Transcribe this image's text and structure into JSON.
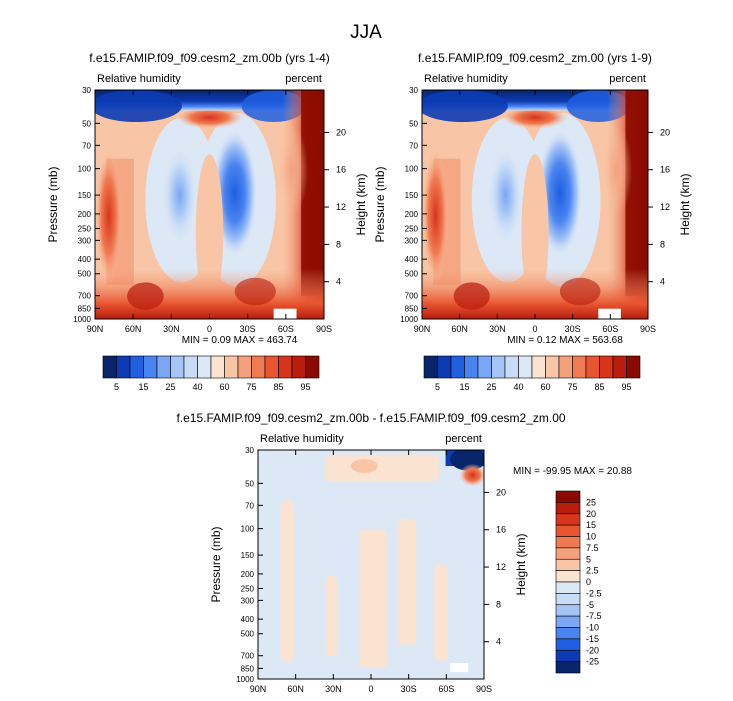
{
  "figure_title": "JJA",
  "colors": {
    "diverging_scale": [
      "#08246b",
      "#0c3bb4",
      "#1f5fe0",
      "#4a84f0",
      "#7aa6f5",
      "#a6c5f7",
      "#c8dcf6",
      "#dde8f6",
      "#fbe3d2",
      "#f8c6a6",
      "#f5a07c",
      "#f07a52",
      "#e8552f",
      "#d7341c",
      "#b81d0e",
      "#8a0a00"
    ],
    "frame": "#000000"
  },
  "chart_data": [
    {
      "type": "heatmap",
      "title": "f.e15.FAMIP.f09_f09.cesm2_zm.00b (yrs 1-4)",
      "left_label": "Relative humidity",
      "right_label": "percent",
      "ylabel": "Pressure (mb)",
      "y2label": "Height (km)",
      "x_ticks": [
        "90N",
        "60N",
        "30N",
        "0",
        "30S",
        "60S",
        "90S"
      ],
      "y_ticks": [
        "30",
        "50",
        "70",
        "100",
        "150",
        "200",
        "250",
        "300",
        "400",
        "500",
        "700",
        "850",
        "1000"
      ],
      "y2_ticks": [
        "20",
        "16",
        "12",
        "8",
        "4"
      ],
      "stats": "MIN =  0.09  MAX = 463.74",
      "colorbar_labels": [
        "5",
        "15",
        "25",
        "40",
        "60",
        "75",
        "85",
        "95"
      ]
    },
    {
      "type": "heatmap",
      "title": "f.e15.FAMIP.f09_f09.cesm2_zm.00 (yrs 1-9)",
      "left_label": "Relative humidity",
      "right_label": "percent",
      "ylabel": "Pressure (mb)",
      "y2label": "Height (km)",
      "x_ticks": [
        "90N",
        "60N",
        "30N",
        "0",
        "30S",
        "60S",
        "90S"
      ],
      "y_ticks": [
        "30",
        "50",
        "70",
        "100",
        "150",
        "200",
        "250",
        "300",
        "400",
        "500",
        "700",
        "850",
        "1000"
      ],
      "y2_ticks": [
        "20",
        "16",
        "12",
        "8",
        "4"
      ],
      "stats": "MIN =  0.12  MAX = 563.68",
      "colorbar_labels": [
        "5",
        "15",
        "25",
        "40",
        "60",
        "75",
        "85",
        "95"
      ]
    },
    {
      "type": "heatmap",
      "title": "f.e15.FAMIP.f09_f09.cesm2_zm.00b - f.e15.FAMIP.f09_f09.cesm2_zm.00",
      "left_label": "Relative humidity",
      "right_label": "percent",
      "ylabel": "Pressure (mb)",
      "y2label": "Height (km)",
      "x_ticks": [
        "90N",
        "60N",
        "30N",
        "0",
        "30S",
        "60S",
        "90S"
      ],
      "y_ticks": [
        "30",
        "50",
        "70",
        "100",
        "150",
        "200",
        "250",
        "300",
        "400",
        "500",
        "700",
        "850",
        "1000"
      ],
      "y2_ticks": [
        "20",
        "16",
        "12",
        "8",
        "4"
      ],
      "stats": "MIN = -99.95  MAX =  20.88",
      "colorbar_labels": [
        "25",
        "20",
        "15",
        "10",
        "7.5",
        "5",
        "2.5",
        "0",
        "-2.5",
        "-5",
        "-7.5",
        "-10",
        "-15",
        "-20",
        "-25"
      ]
    }
  ]
}
